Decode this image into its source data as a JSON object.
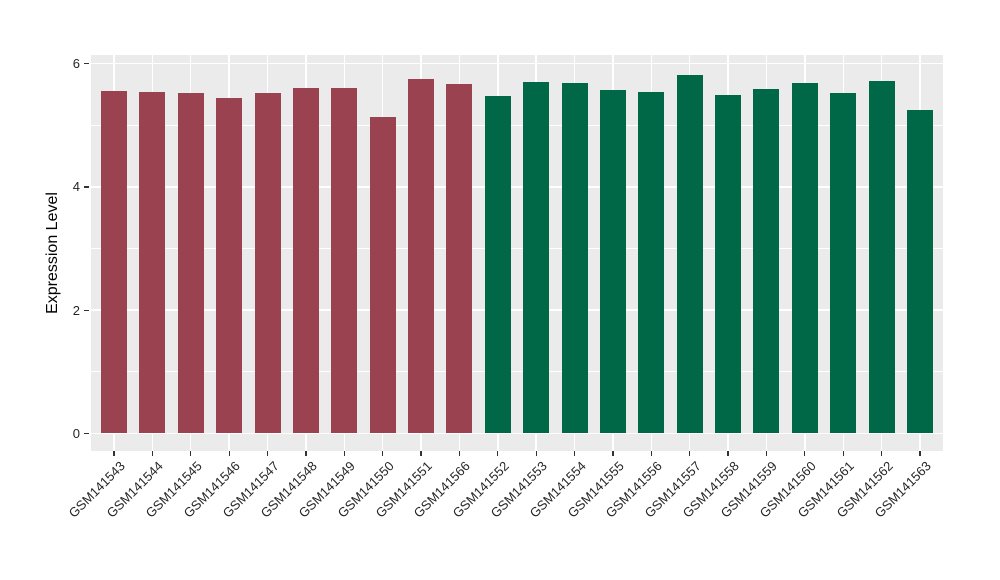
{
  "chart_data": {
    "type": "bar",
    "title": "",
    "xlabel": "",
    "ylabel": "Expression Level",
    "ylim": [
      0,
      6.35
    ],
    "yticks": [
      0,
      2,
      4,
      6
    ],
    "minor_gridlines": [
      1,
      3,
      5
    ],
    "grid": "on",
    "legend": "none",
    "panel_background": "#EBEBEB",
    "grid_color": "#FFFFFF",
    "group_colors": {
      "left_group": "#9A424F",
      "right_group": "#006847"
    },
    "bars": [
      {
        "label": "GSM141543",
        "value": 5.56,
        "group": "left_group"
      },
      {
        "label": "GSM141544",
        "value": 5.54,
        "group": "left_group"
      },
      {
        "label": "GSM141545",
        "value": 5.52,
        "group": "left_group"
      },
      {
        "label": "GSM141546",
        "value": 5.44,
        "group": "left_group"
      },
      {
        "label": "GSM141547",
        "value": 5.52,
        "group": "left_group"
      },
      {
        "label": "GSM141548",
        "value": 5.61,
        "group": "left_group"
      },
      {
        "label": "GSM141549",
        "value": 5.6,
        "group": "left_group"
      },
      {
        "label": "GSM141550",
        "value": 5.13,
        "group": "left_group"
      },
      {
        "label": "GSM141551",
        "value": 5.75,
        "group": "left_group"
      },
      {
        "label": "GSM141566",
        "value": 5.66,
        "group": "left_group"
      },
      {
        "label": "GSM141552",
        "value": 5.47,
        "group": "right_group"
      },
      {
        "label": "GSM141553",
        "value": 5.7,
        "group": "right_group"
      },
      {
        "label": "GSM141554",
        "value": 5.68,
        "group": "right_group"
      },
      {
        "label": "GSM141555",
        "value": 5.57,
        "group": "right_group"
      },
      {
        "label": "GSM141556",
        "value": 5.53,
        "group": "right_group"
      },
      {
        "label": "GSM141557",
        "value": 5.81,
        "group": "right_group"
      },
      {
        "label": "GSM141558",
        "value": 5.49,
        "group": "right_group"
      },
      {
        "label": "GSM141559",
        "value": 5.59,
        "group": "right_group"
      },
      {
        "label": "GSM141560",
        "value": 5.68,
        "group": "right_group"
      },
      {
        "label": "GSM141561",
        "value": 5.52,
        "group": "right_group"
      },
      {
        "label": "GSM141562",
        "value": 5.71,
        "group": "right_group"
      },
      {
        "label": "GSM141563",
        "value": 5.24,
        "group": "right_group"
      }
    ]
  }
}
